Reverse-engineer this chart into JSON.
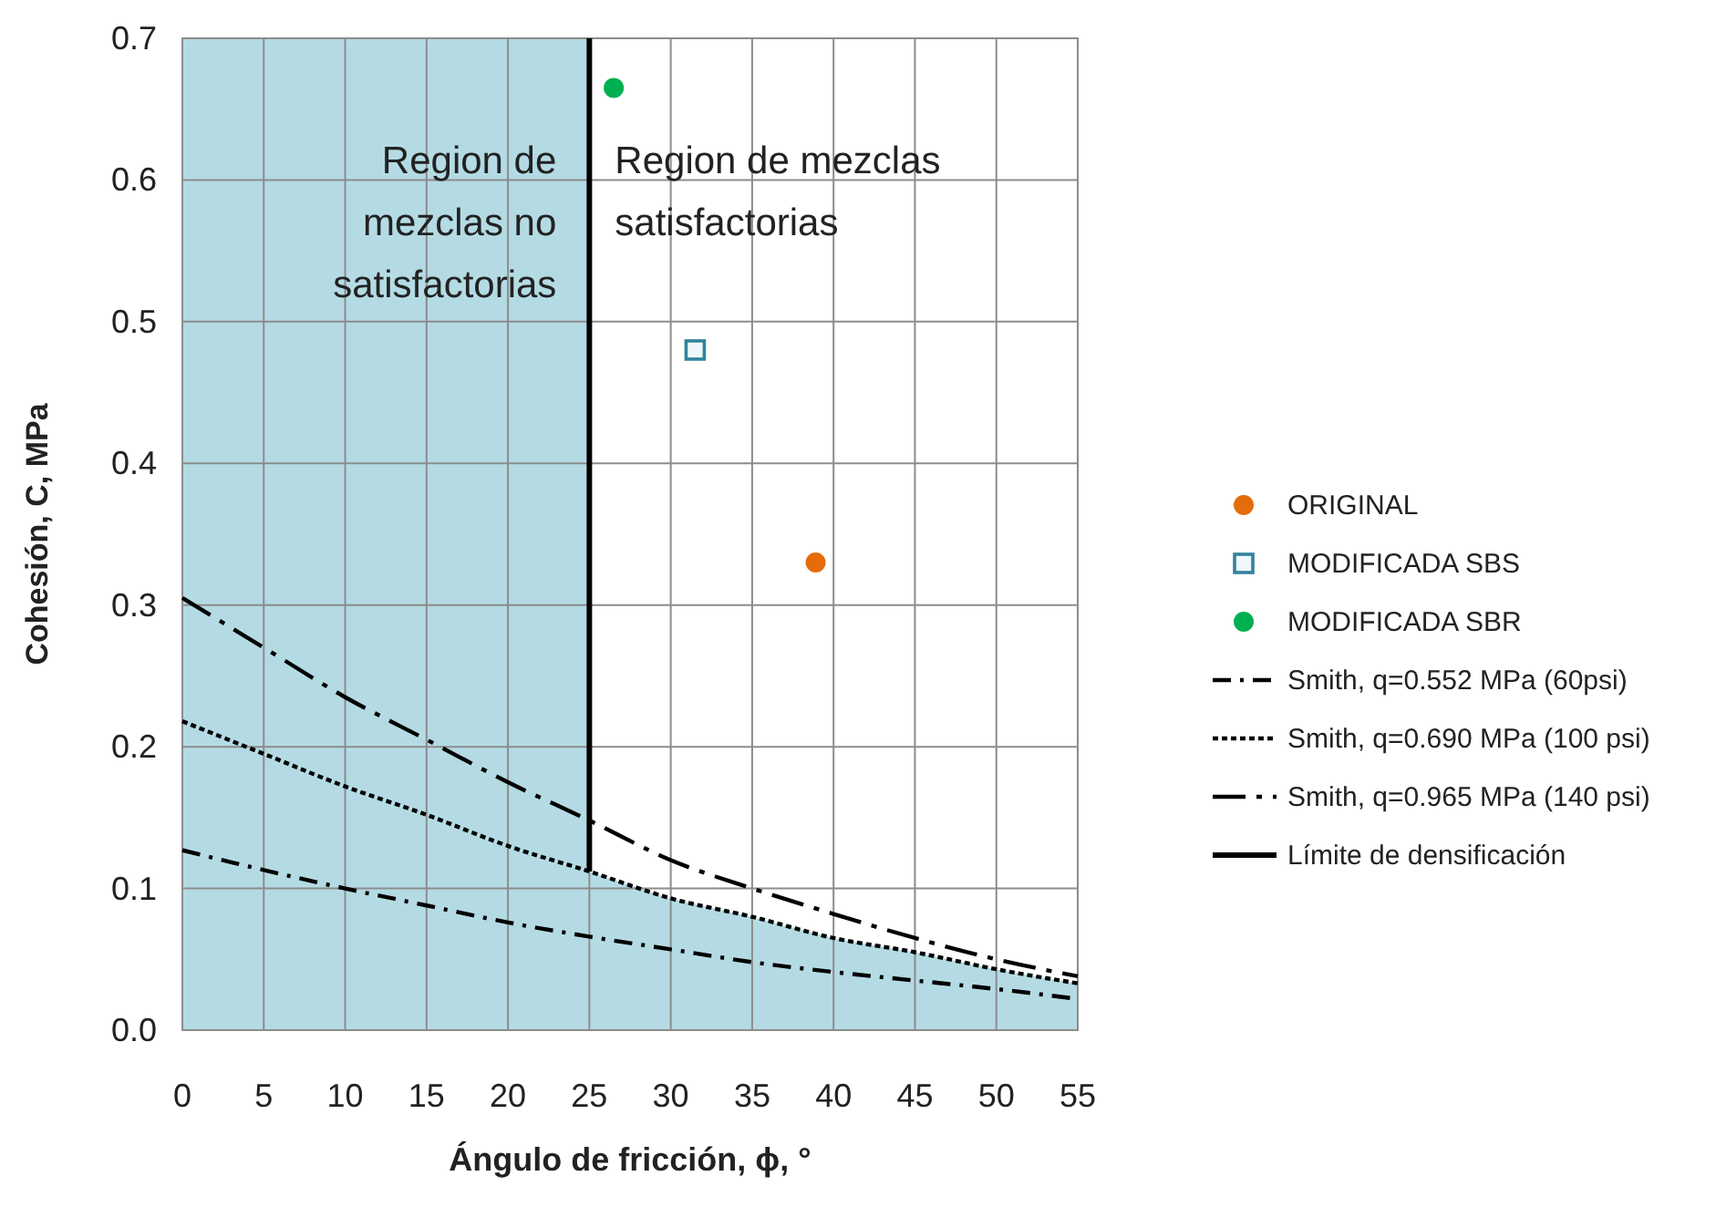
{
  "chart_data": {
    "type": "scatter",
    "xlabel": "Ángulo de fricción, ϕ, °",
    "ylabel": "Cohesión, C, MPa",
    "xlim": [
      0,
      55
    ],
    "xticks": [
      0,
      5,
      10,
      15,
      20,
      25,
      30,
      35,
      40,
      45,
      50,
      55
    ],
    "ylim": [
      0,
      0.7
    ],
    "yticks": [
      {
        "value": 0,
        "label": "0.0"
      },
      {
        "value": 0.1,
        "label": "0.1"
      },
      {
        "value": 0.2,
        "label": "0.2"
      },
      {
        "value": 0.3,
        "label": "0.3"
      },
      {
        "value": 0.4,
        "label": "0.4"
      },
      {
        "value": 0.5,
        "label": "0.5"
      },
      {
        "value": 0.6,
        "label": "0.6"
      },
      {
        "value": 0.7,
        "label": "0.7"
      }
    ],
    "grid": true,
    "legend": "right",
    "bands": [
      {
        "axis": "x",
        "from": 0,
        "to": 25,
        "color": "#b4dbe4"
      }
    ],
    "annotations": [
      "Region de\nmezclas no\nsatisfactorias",
      "Region de mezclas\nsatisfactorias"
    ],
    "series": [
      {
        "type": "area",
        "color": "#b4dbe4",
        "x": [
          25,
          30,
          35,
          40,
          45,
          50,
          55
        ],
        "values": [
          0.112,
          0.093,
          0.08,
          0.065,
          0.055,
          0.043,
          0.033
        ]
      },
      {
        "name": "ORIGINAL",
        "marker": "circle",
        "color": "#e46c0a",
        "x": [
          38.9
        ],
        "values": [
          0.33
        ]
      },
      {
        "name": "MODIFICADA SBS",
        "marker": "square",
        "color": "#31849b",
        "x": [
          31.5
        ],
        "values": [
          0.48
        ]
      },
      {
        "name": "MODIFICADA SBR",
        "marker": "circle",
        "color": "#00b050",
        "x": [
          26.5
        ],
        "values": [
          0.665
        ]
      },
      {
        "name": "Smith, q=0.552 MPa (60psi)",
        "type": "line",
        "line_style": "dashdot",
        "color": "#000000",
        "x": [
          0,
          5,
          10,
          15,
          20,
          25,
          30,
          35,
          40,
          45,
          50,
          55
        ],
        "values": [
          0.127,
          0.113,
          0.1,
          0.088,
          0.076,
          0.066,
          0.057,
          0.048,
          0.041,
          0.035,
          0.029,
          0.022
        ]
      },
      {
        "name": "Smith, q=0.690 MPa (100 psi)",
        "type": "line",
        "line_style": "dotted",
        "color": "#000000",
        "x": [
          0,
          5,
          10,
          15,
          20,
          25,
          30,
          35,
          40,
          45,
          50,
          55
        ],
        "values": [
          0.218,
          0.195,
          0.172,
          0.152,
          0.13,
          0.112,
          0.093,
          0.08,
          0.065,
          0.055,
          0.043,
          0.033
        ]
      },
      {
        "name": "Smith, q=0.965 MPa (140 psi)",
        "type": "line",
        "line_style": "longdashdot",
        "color": "#000000",
        "x": [
          0,
          5,
          10,
          15,
          20,
          25,
          30,
          35,
          40,
          45,
          50,
          55
        ],
        "values": [
          0.305,
          0.27,
          0.235,
          0.205,
          0.175,
          0.148,
          0.12,
          0.1,
          0.082,
          0.065,
          0.05,
          0.038
        ]
      },
      {
        "name": "Límite de densificación",
        "type": "line",
        "line_style": "solid",
        "color": "#000000",
        "x": [
          25,
          25
        ],
        "values": [
          0.112,
          0.7
        ]
      }
    ]
  }
}
